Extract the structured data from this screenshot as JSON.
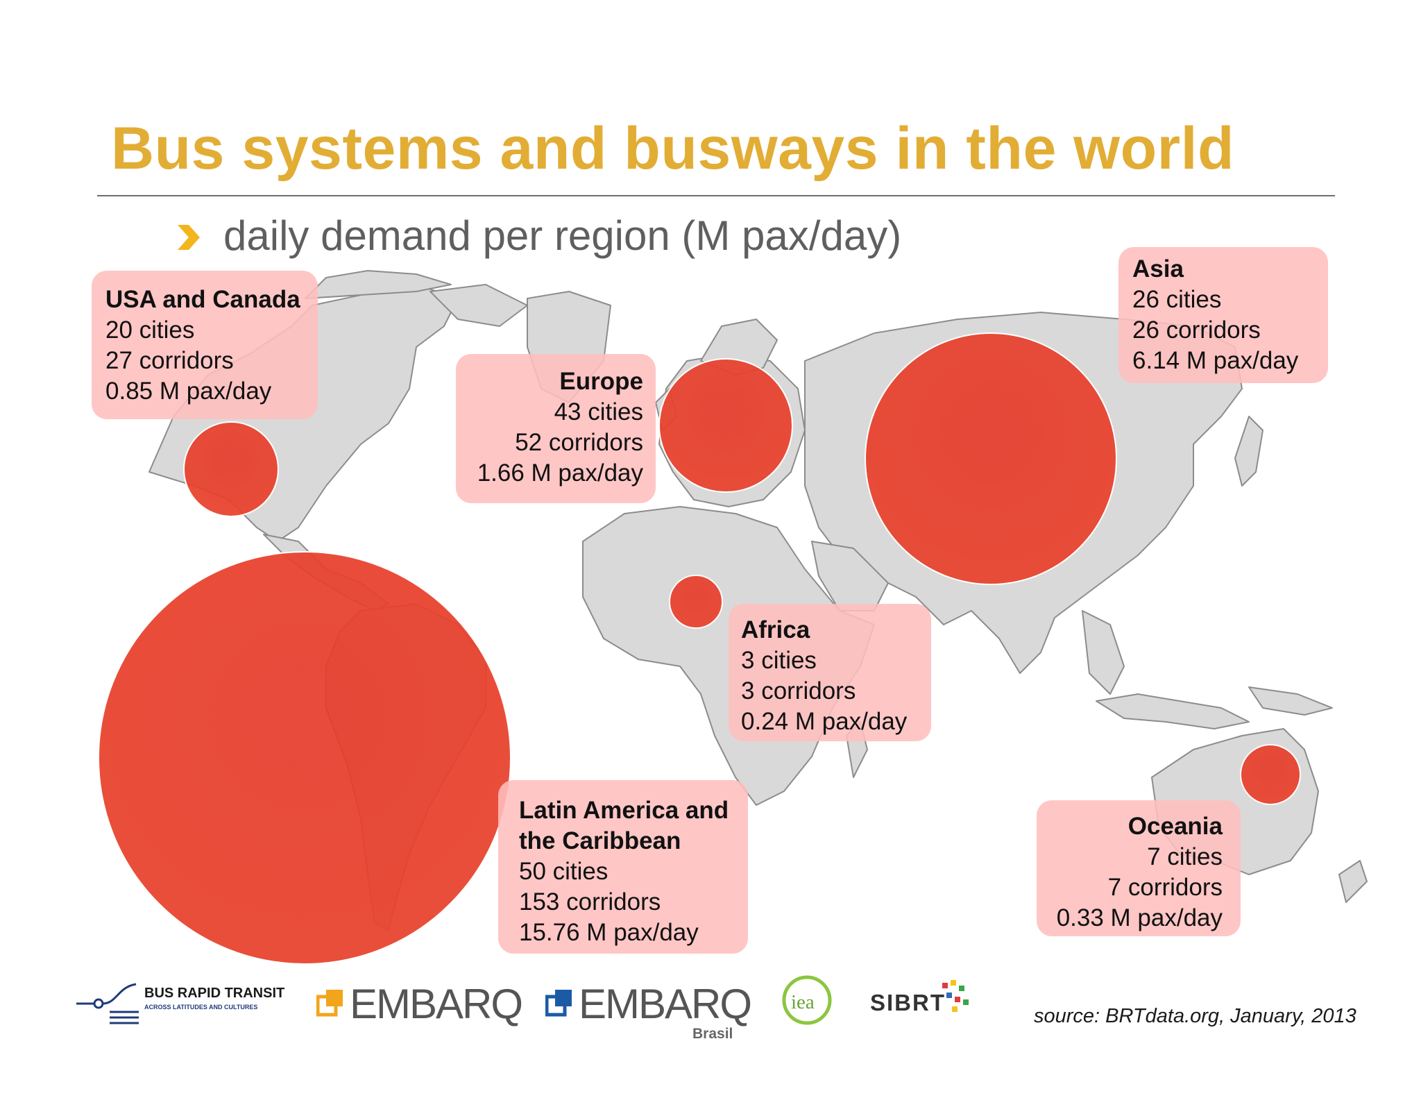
{
  "slide": {
    "title": "Bus systems and busways in the world",
    "subtitle": "daily demand per region (M pax/day)",
    "source": "source: BRTdata.org, January, 2013",
    "accent_color": "#e2ad35",
    "bubble_color": "#e8452f"
  },
  "regions": [
    {
      "name": "USA and Canada",
      "cities": "20 cities",
      "corridors": "27 corridors",
      "demand": "0.85 M pax/day",
      "demand_value": 0.85
    },
    {
      "name": "Europe",
      "cities": "43 cities",
      "corridors": "52 corridors",
      "demand": "1.66 M pax/day",
      "demand_value": 1.66
    },
    {
      "name": "Asia",
      "cities": "26 cities",
      "corridors": "26 corridors",
      "demand": "6.14 M pax/day",
      "demand_value": 6.14
    },
    {
      "name": "Africa",
      "cities": "3 cities",
      "corridors": "3 corridors",
      "demand": "0.24 M pax/day",
      "demand_value": 0.24
    },
    {
      "name_line1": "Latin America and",
      "name_line2": "the Caribbean",
      "cities": "50 cities",
      "corridors": "153 corridors",
      "demand": "15.76 M pax/day",
      "demand_value": 15.76
    },
    {
      "name": "Oceania",
      "cities": "7 cities",
      "corridors": "7 corridors",
      "demand": "0.33 M pax/day",
      "demand_value": 0.33
    }
  ],
  "logos": {
    "brt_line1": "BUS RAPID TRANSIT",
    "brt_line2": "ACROSS LATITUDES AND CULTURES",
    "embarq": "EMBARQ",
    "embarq_brasil": "EMBARQ",
    "brasil": "Brasil",
    "iea": "iea",
    "sibrt": "SIBRT"
  }
}
